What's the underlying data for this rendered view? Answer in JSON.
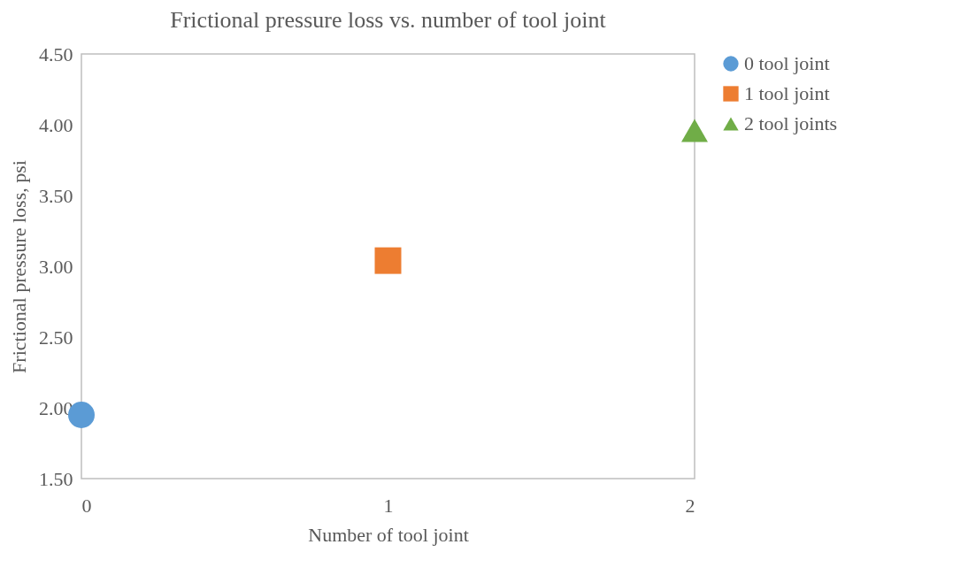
{
  "chart_data": {
    "type": "scatter",
    "title": "Frictional pressure loss vs. number of tool joint",
    "xlabel": "Number of tool joint",
    "ylabel": "Frictional pressure loss, psi",
    "xlim": [
      0,
      2
    ],
    "xticks": [
      0,
      1,
      2
    ],
    "ylim": [
      1.5,
      4.5
    ],
    "yticks": [
      {
        "value": 1.5,
        "label": "1.50"
      },
      {
        "value": 2,
        "label": "2.00"
      },
      {
        "value": 2.5,
        "label": "2.50"
      },
      {
        "value": 3,
        "label": "3.00"
      },
      {
        "value": 3.5,
        "label": "3.50"
      },
      {
        "value": 4,
        "label": "4.00"
      },
      {
        "value": 4.5,
        "label": "4.50"
      }
    ],
    "grid": false,
    "legend": "right",
    "series": [
      {
        "name": "0 tool joint",
        "color": "#5b9bd5",
        "marker": "circle",
        "x": [
          0
        ],
        "values": [
          1.95
        ]
      },
      {
        "name": "1 tool joint",
        "color": "#ed7d31",
        "marker": "square",
        "x": [
          1
        ],
        "values": [
          3.04
        ]
      },
      {
        "name": "2 tool joints",
        "color": "#70ad47",
        "marker": "triangle",
        "x": [
          2
        ],
        "values": [
          3.96
        ]
      }
    ]
  }
}
